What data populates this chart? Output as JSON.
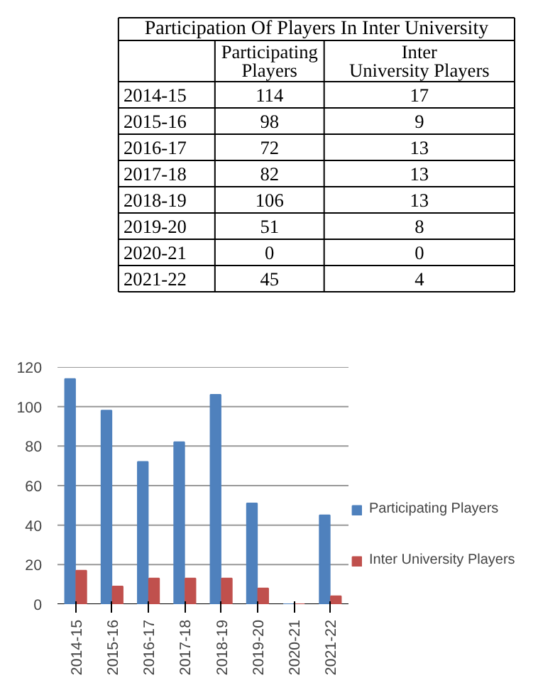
{
  "chart_data": [
    {
      "type": "other",
      "title": "Participation Of Players In Inter University",
      "categories": [
        "2014-15",
        "2015-16",
        "2016-17",
        "2017-18",
        "2018-19",
        "2019-20",
        "2020-21",
        "2021-22"
      ],
      "series": [
        {
          "name": "Participating Players",
          "values": [
            114,
            98,
            72,
            82,
            106,
            51,
            0,
            45
          ],
          "value_labels": [
            "114",
            "98",
            "72",
            "82",
            "106",
            "51",
            "0",
            "45"
          ]
        },
        {
          "name": "Inter University Players",
          "values": [
            17,
            9,
            13,
            13,
            13,
            8,
            0,
            4
          ],
          "value_labels": [
            "17",
            "9",
            "13",
            "13",
            "13",
            "8",
            "0",
            "4"
          ]
        }
      ],
      "data_labels": true
    },
    {
      "type": "bar",
      "categories": [
        "2014-15",
        "2015-16",
        "2016-17",
        "2017-18",
        "2018-19",
        "2019-20",
        "2020-21",
        "2021-22"
      ],
      "series": [
        {
          "name": "Participating Players",
          "color": "#4f81bd",
          "values": [
            114,
            98,
            72,
            82,
            106,
            51,
            0,
            45
          ]
        },
        {
          "name": "Inter University Players",
          "color": "#c0504d",
          "values": [
            17,
            9,
            13,
            13,
            13,
            8,
            0,
            4
          ]
        }
      ],
      "ylim": [
        0,
        120
      ],
      "yticks": [
        0,
        20,
        40,
        60,
        80,
        100,
        120
      ],
      "grid": "y",
      "legend": "right"
    }
  ]
}
